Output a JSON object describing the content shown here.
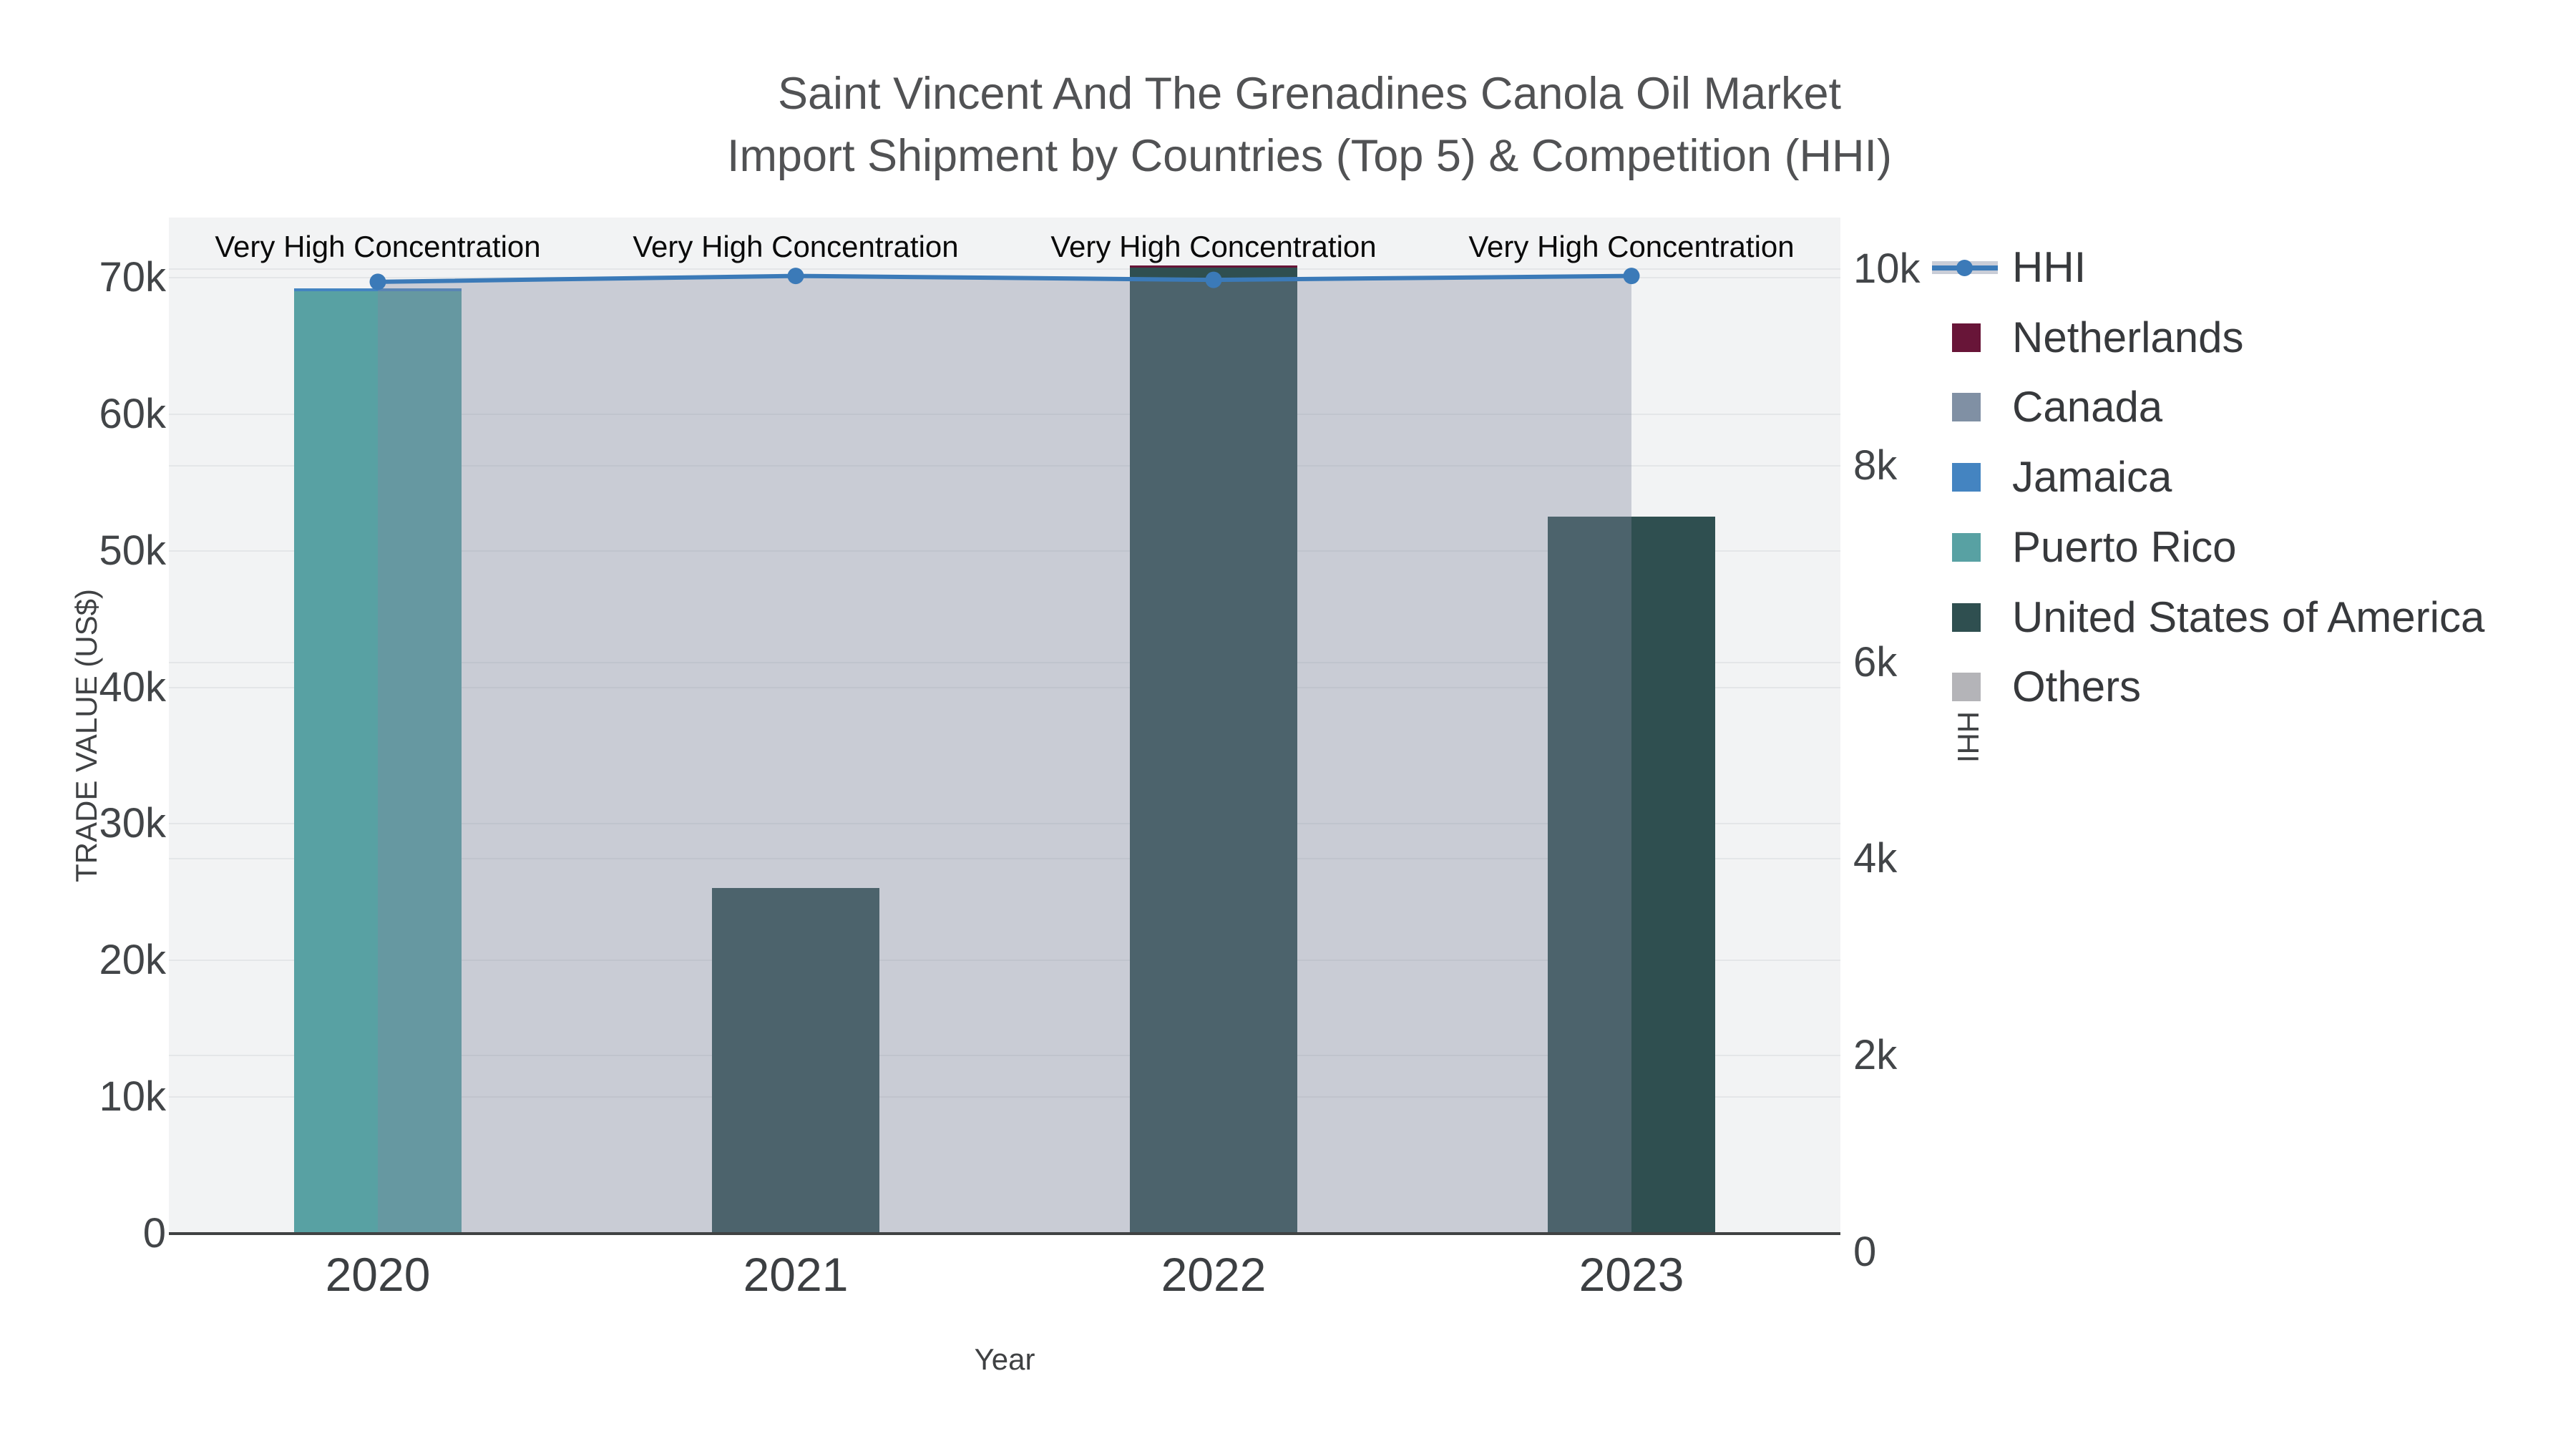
{
  "title": {
    "line1": "Saint Vincent And The Grenadines Canola Oil Market",
    "line2": "Import Shipment by Countries (Top 5) & Competition (HHI)"
  },
  "legend": {
    "items": [
      {
        "label": "HHI",
        "color": "#3b7ab8",
        "glyph": "line"
      },
      {
        "label": "Netherlands",
        "color": "#681538",
        "glyph": "swatch"
      },
      {
        "label": "Canada",
        "color": "#8090a4",
        "glyph": "swatch"
      },
      {
        "label": "Jamaica",
        "color": "#4484c1",
        "glyph": "swatch"
      },
      {
        "label": "Puerto Rico",
        "color": "#58a1a3",
        "glyph": "swatch"
      },
      {
        "label": "United States of America",
        "color": "#2f4f50",
        "glyph": "swatch"
      },
      {
        "label": "Others",
        "color": "#b4b4b8",
        "glyph": "swatch"
      }
    ]
  },
  "chart_data": {
    "type": "bar",
    "subtype": "stacked bars (trade value by country) + HHI line with shaded area on secondary axis",
    "categories": [
      "2020",
      "2021",
      "2022",
      "2023"
    ],
    "series": [
      {
        "name": "Netherlands",
        "type": "bar",
        "color": "#681538",
        "values": [
          0,
          0,
          150,
          0
        ]
      },
      {
        "name": "Canada",
        "type": "bar",
        "color": "#8090a4",
        "values": [
          0,
          0,
          0,
          0
        ]
      },
      {
        "name": "Jamaica",
        "type": "bar",
        "color": "#4484c1",
        "values": [
          200,
          0,
          0,
          0
        ]
      },
      {
        "name": "Puerto Rico",
        "type": "bar",
        "color": "#58a1a3",
        "values": [
          69000,
          0,
          0,
          0
        ]
      },
      {
        "name": "United States of America",
        "type": "bar",
        "color": "#2f4f50",
        "values": [
          0,
          25300,
          70750,
          52500
        ]
      },
      {
        "name": "Others",
        "type": "bar",
        "color": "#b4b4b8",
        "values": [
          0,
          0,
          0,
          0
        ]
      },
      {
        "name": "HHI",
        "type": "line",
        "axis": "right",
        "color": "#3b7ab8",
        "area_fill": "rgba(128,137,157,0.36)",
        "values": [
          9870,
          9930,
          9890,
          9930
        ]
      }
    ],
    "stack_order": [
      "Puerto Rico",
      "United States of America",
      "Canada",
      "Others",
      "Jamaica",
      "Netherlands"
    ],
    "annotations": [
      "Very High Concentration",
      "Very High Concentration",
      "Very High Concentration",
      "Very High Concentration"
    ],
    "left_axis": {
      "title": "TRADE VALUE (US$)",
      "tick_labels": [
        "0",
        "10k",
        "20k",
        "30k",
        "40k",
        "50k",
        "60k",
        "70k"
      ],
      "tick_values": [
        0,
        10000,
        20000,
        30000,
        40000,
        50000,
        60000,
        70000
      ],
      "range": [
        0,
        74400
      ]
    },
    "right_axis": {
      "title": "HHI",
      "tick_labels": [
        "0",
        "2k",
        "4k",
        "6k",
        "8k",
        "10k"
      ],
      "tick_values": [
        0,
        2000,
        4000,
        6000,
        8000,
        10000
      ],
      "range": [
        0,
        10500
      ]
    },
    "x_axis": {
      "title": "Year"
    },
    "legend_position": "right",
    "grid": true
  }
}
